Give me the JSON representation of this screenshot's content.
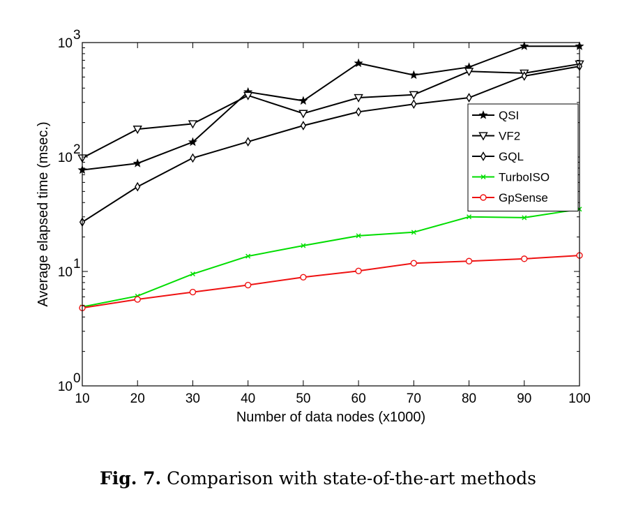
{
  "chart_data": {
    "type": "line",
    "x": [
      10,
      20,
      30,
      40,
      50,
      60,
      70,
      80,
      90,
      100
    ],
    "x_tick_labels": [
      "10",
      "20",
      "30",
      "40",
      "50",
      "60",
      "70",
      "80",
      "90",
      "100"
    ],
    "xlim": [
      10,
      100
    ],
    "ylim": [
      1,
      1000
    ],
    "yscale": "log",
    "y_tick_labels": [
      {
        "base": "10",
        "exp": "0"
      },
      {
        "base": "10",
        "exp": "1"
      },
      {
        "base": "10",
        "exp": "2"
      },
      {
        "base": "10",
        "exp": "3"
      }
    ],
    "xlabel": "Number of data nodes (x1000)",
    "ylabel": "Average elapsed time (msec.)",
    "grid": false,
    "legend_position": "right",
    "series": [
      {
        "name": "QSI",
        "color": "#000000",
        "marker": "star",
        "values": [
          77,
          88,
          135,
          370,
          310,
          660,
          520,
          610,
          930,
          930
        ]
      },
      {
        "name": "VF2",
        "color": "#000000",
        "marker": "triangle-down",
        "values": [
          98,
          175,
          195,
          345,
          240,
          330,
          350,
          560,
          540,
          650
        ]
      },
      {
        "name": "GQL",
        "color": "#000000",
        "marker": "diamond",
        "values": [
          27,
          55,
          98,
          136,
          188,
          248,
          290,
          330,
          510,
          620
        ]
      },
      {
        "name": "TurboISO",
        "color": "#00dd00",
        "marker": "x",
        "values": [
          4.9,
          6.1,
          9.5,
          13.6,
          16.8,
          20.5,
          22.0,
          30.0,
          29.5,
          35.0
        ]
      },
      {
        "name": "GpSense",
        "color": "#ee1111",
        "marker": "circle",
        "values": [
          4.8,
          5.7,
          6.6,
          7.6,
          8.9,
          10.1,
          11.8,
          12.3,
          12.9,
          13.8
        ]
      }
    ]
  },
  "caption": {
    "label": "Fig. 7.",
    "text": " Comparison with state-of-the-art methods"
  }
}
